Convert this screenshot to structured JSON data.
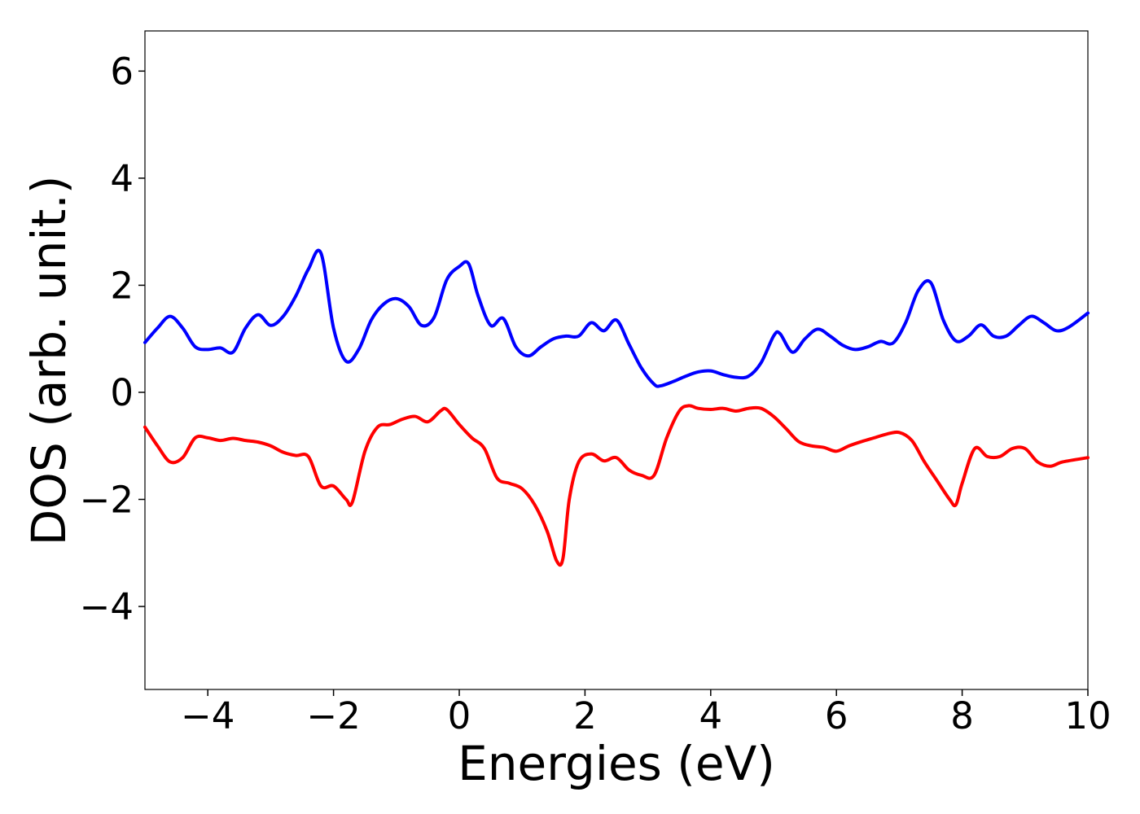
{
  "chart_data": {
    "type": "line",
    "title": "",
    "xlabel": "Energies (eV)",
    "ylabel": "DOS (arb. unit.)",
    "xlim": [
      -5,
      10
    ],
    "ylim": [
      -5.55,
      6.75
    ],
    "xticks": [
      -4,
      -2,
      0,
      2,
      4,
      6,
      8,
      10
    ],
    "yticks": [
      -4,
      -2,
      0,
      2,
      4,
      6
    ],
    "xtick_labels": [
      "−4",
      "−2",
      "0",
      "2",
      "4",
      "6",
      "8",
      "10"
    ],
    "ytick_labels": [
      "−4",
      "−2",
      "0",
      "2",
      "4",
      "6"
    ],
    "grid": false,
    "legend": "none",
    "series": [
      {
        "color": "#0000ff",
        "x": [
          -5.0,
          -4.8,
          -4.6,
          -4.4,
          -4.2,
          -4.0,
          -3.8,
          -3.6,
          -3.4,
          -3.2,
          -3.0,
          -2.8,
          -2.6,
          -2.4,
          -2.2,
          -2.0,
          -1.8,
          -1.6,
          -1.4,
          -1.2,
          -1.0,
          -0.8,
          -0.6,
          -0.4,
          -0.2,
          0.0,
          0.15,
          0.3,
          0.5,
          0.7,
          0.9,
          1.1,
          1.3,
          1.5,
          1.7,
          1.9,
          2.1,
          2.3,
          2.5,
          2.7,
          2.9,
          3.1,
          3.2,
          3.4,
          3.6,
          3.8,
          4.0,
          4.2,
          4.4,
          4.6,
          4.8,
          5.0,
          5.1,
          5.3,
          5.5,
          5.7,
          5.9,
          6.1,
          6.3,
          6.5,
          6.7,
          6.9,
          7.1,
          7.3,
          7.5,
          7.7,
          7.9,
          8.1,
          8.3,
          8.5,
          8.7,
          8.9,
          9.1,
          9.3,
          9.5,
          9.7,
          10.0
        ],
        "y": [
          0.93,
          1.2,
          1.42,
          1.2,
          0.85,
          0.8,
          0.83,
          0.75,
          1.2,
          1.45,
          1.25,
          1.42,
          1.8,
          2.3,
          2.6,
          1.2,
          0.58,
          0.8,
          1.35,
          1.65,
          1.75,
          1.6,
          1.25,
          1.4,
          2.1,
          2.35,
          2.4,
          1.8,
          1.25,
          1.38,
          0.85,
          0.68,
          0.85,
          1.0,
          1.05,
          1.05,
          1.3,
          1.15,
          1.35,
          0.9,
          0.45,
          0.15,
          0.12,
          0.2,
          0.3,
          0.38,
          0.4,
          0.33,
          0.28,
          0.3,
          0.55,
          1.05,
          1.1,
          0.75,
          1.0,
          1.18,
          1.05,
          0.88,
          0.8,
          0.85,
          0.95,
          0.92,
          1.3,
          1.9,
          2.05,
          1.35,
          0.96,
          1.05,
          1.26,
          1.05,
          1.05,
          1.25,
          1.42,
          1.3,
          1.15,
          1.22,
          1.48
        ]
      },
      {
        "color": "#ff0000",
        "x": [
          -5.0,
          -4.8,
          -4.6,
          -4.4,
          -4.2,
          -4.0,
          -3.8,
          -3.6,
          -3.4,
          -3.2,
          -3.0,
          -2.8,
          -2.6,
          -2.4,
          -2.2,
          -2.0,
          -1.8,
          -1.7,
          -1.5,
          -1.3,
          -1.1,
          -0.9,
          -0.7,
          -0.5,
          -0.3,
          -0.2,
          0.0,
          0.2,
          0.4,
          0.6,
          0.8,
          1.0,
          1.2,
          1.4,
          1.55,
          1.65,
          1.75,
          1.9,
          2.1,
          2.3,
          2.5,
          2.7,
          2.9,
          3.1,
          3.3,
          3.5,
          3.65,
          3.8,
          4.0,
          4.2,
          4.4,
          4.6,
          4.8,
          5.0,
          5.2,
          5.4,
          5.6,
          5.8,
          6.0,
          6.2,
          6.4,
          6.6,
          6.8,
          7.0,
          7.2,
          7.4,
          7.6,
          7.8,
          7.9,
          8.0,
          8.2,
          8.4,
          8.6,
          8.8,
          9.0,
          9.2,
          9.4,
          9.6,
          10.0
        ],
        "y": [
          -0.65,
          -1.0,
          -1.3,
          -1.22,
          -0.85,
          -0.85,
          -0.9,
          -0.86,
          -0.9,
          -0.93,
          -1.0,
          -1.12,
          -1.18,
          -1.2,
          -1.75,
          -1.75,
          -2.0,
          -2.05,
          -1.1,
          -0.65,
          -0.6,
          -0.5,
          -0.45,
          -0.55,
          -0.35,
          -0.32,
          -0.6,
          -0.85,
          -1.05,
          -1.6,
          -1.7,
          -1.8,
          -2.1,
          -2.6,
          -3.15,
          -3.1,
          -2.0,
          -1.3,
          -1.15,
          -1.28,
          -1.22,
          -1.45,
          -1.55,
          -1.55,
          -0.85,
          -0.35,
          -0.25,
          -0.3,
          -0.32,
          -0.3,
          -0.35,
          -0.3,
          -0.3,
          -0.45,
          -0.68,
          -0.92,
          -1.0,
          -1.03,
          -1.1,
          -1.0,
          -0.92,
          -0.85,
          -0.78,
          -0.75,
          -0.9,
          -1.3,
          -1.65,
          -2.0,
          -2.1,
          -1.7,
          -1.05,
          -1.2,
          -1.2,
          -1.05,
          -1.05,
          -1.3,
          -1.38,
          -1.3,
          -1.22
        ]
      }
    ]
  }
}
